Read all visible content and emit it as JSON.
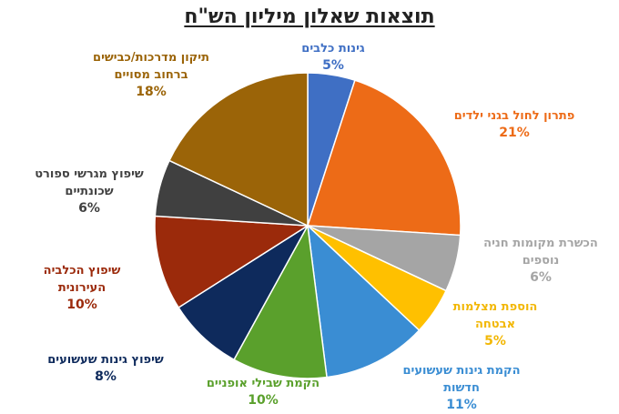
{
  "chart_data": {
    "type": "pie",
    "title": "תוצאות  שאלון מיליון הש\"ח",
    "slices": [
      {
        "lines": [
          "גינות כלבים"
        ],
        "value": 5,
        "label": "5%",
        "color": "#3f6fc4"
      },
      {
        "lines": [
          "פתרון לחול בגני ילדים"
        ],
        "value": 21,
        "label": "21%",
        "color": "#ed6b17"
      },
      {
        "lines": [
          "הכשרת מקומות חניה",
          "נוספים"
        ],
        "value": 6,
        "label": "6%",
        "color": "#a5a5a5"
      },
      {
        "lines": [
          "הוספת מצלמות",
          "אבטחה"
        ],
        "value": 5,
        "label": "5%",
        "color": "#ffc000"
      },
      {
        "lines": [
          "הקמת גינות שעשועים",
          "חדשות"
        ],
        "value": 11,
        "label": "11%",
        "color": "#3a8dd3"
      },
      {
        "lines": [
          "הקמת שבילי אופניים"
        ],
        "value": 10,
        "label": "10%",
        "color": "#5aa02c"
      },
      {
        "lines": [
          "שיפוץ גינות שעשועים"
        ],
        "value": 8,
        "label": "8%",
        "color": "#0e2a5c"
      },
      {
        "lines": [
          "שיפוץ הכלביה",
          "העירונית"
        ],
        "value": 10,
        "label": "10%",
        "color": "#9b2a0b"
      },
      {
        "lines": [
          "שיפוץ מגרשי ספורט",
          "שכונתיים"
        ],
        "value": 6,
        "label": "6%",
        "color": "#404040"
      },
      {
        "lines": [
          "תיקון מדרכות/כבישים",
          "ברחוב מסויים"
        ],
        "value": 18,
        "label": "18%",
        "color": "#9b6408"
      }
    ]
  }
}
